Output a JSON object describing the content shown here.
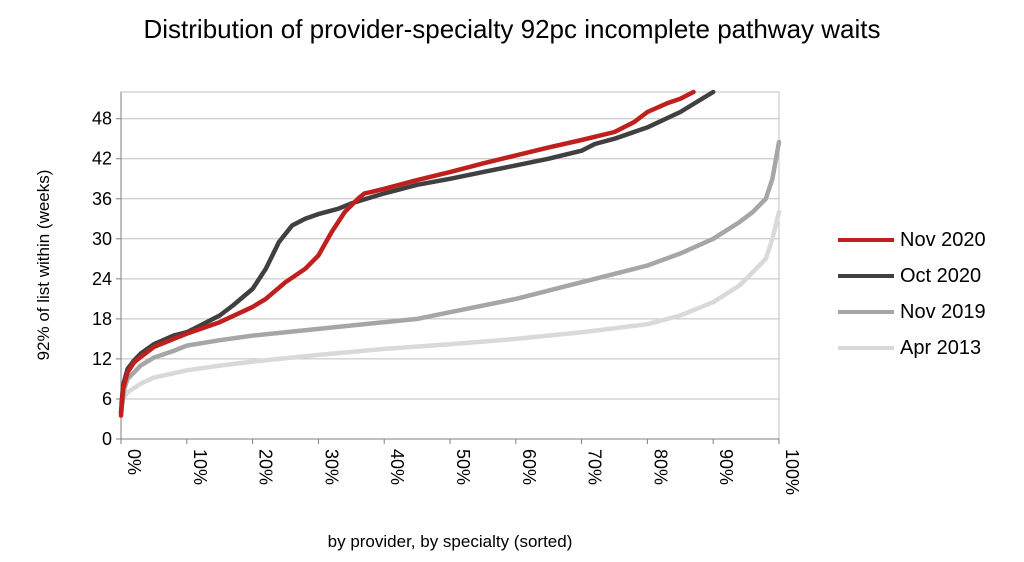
{
  "chart_data": {
    "type": "line",
    "title": "Distribution of provider-specialty 92pc incomplete pathway waits",
    "xlabel": "by provider, by specialty (sorted)",
    "ylabel": "92% of list within (weeks)",
    "ylim": [
      0,
      52
    ],
    "yticks": [
      "0",
      "6",
      "12",
      "18",
      "24",
      "30",
      "36",
      "42",
      "48"
    ],
    "xlim": [
      0,
      100
    ],
    "xticks": [
      "0%",
      "10%",
      "20%",
      "30%",
      "40%",
      "50%",
      "60%",
      "70%",
      "80%",
      "90%",
      "100%"
    ],
    "grid": "horizontal",
    "legend_position": "right",
    "series": [
      {
        "name": "Apr 2013",
        "color": "#d9d9d9",
        "x": [
          0,
          1,
          3,
          5,
          10,
          15,
          20,
          30,
          40,
          50,
          60,
          70,
          80,
          85,
          90,
          94,
          96,
          98,
          99,
          100
        ],
        "y": [
          5.5,
          7,
          8.3,
          9.2,
          10.3,
          11,
          11.6,
          12.6,
          13.5,
          14.2,
          15,
          16,
          17.2,
          18.5,
          20.5,
          23,
          25,
          27,
          30,
          34
        ]
      },
      {
        "name": "Nov 2019",
        "color": "#a6a6a6",
        "x": [
          0,
          0.5,
          1,
          3,
          5,
          8,
          10,
          15,
          20,
          30,
          40,
          45,
          50,
          60,
          70,
          80,
          85,
          90,
          94,
          96,
          98,
          99,
          100
        ],
        "y": [
          4,
          7.5,
          9,
          11,
          12.2,
          13.2,
          14,
          14.8,
          15.5,
          16.5,
          17.5,
          18,
          19,
          21,
          23.5,
          26,
          27.8,
          30,
          32.5,
          34,
          36,
          39,
          44.5
        ]
      },
      {
        "name": "Oct 2020",
        "color": "#404040",
        "x": [
          0,
          0.3,
          1,
          2,
          3,
          5,
          8,
          10,
          12,
          15,
          17,
          20,
          22,
          24,
          26,
          28,
          30,
          33,
          35,
          38,
          40,
          45,
          50,
          55,
          60,
          65,
          70,
          72,
          75,
          80,
          85,
          88,
          90
        ],
        "y": [
          4,
          8,
          10.5,
          11.8,
          12.8,
          14.2,
          15.5,
          16,
          17,
          18.5,
          20,
          22.5,
          25.5,
          29.5,
          32,
          33,
          33.7,
          34.5,
          35.3,
          36.2,
          36.8,
          38.1,
          39,
          40,
          41,
          42,
          43.2,
          44.2,
          45,
          46.7,
          49,
          50.8,
          52
        ]
      },
      {
        "name": "Nov 2020",
        "color": "#c0201d",
        "x": [
          0,
          0.3,
          1,
          2,
          3,
          5,
          8,
          10,
          15,
          20,
          22,
          25,
          28,
          30,
          32,
          34,
          36,
          37,
          38,
          40,
          45,
          50,
          55,
          60,
          65,
          70,
          75,
          78,
          80,
          83,
          85,
          87
        ],
        "y": [
          3.5,
          7.5,
          10,
          11.5,
          12.3,
          13.8,
          15,
          15.8,
          17.5,
          19.8,
          21,
          23.5,
          25.5,
          27.5,
          31,
          34,
          36,
          36.8,
          37,
          37.5,
          38.8,
          40,
          41.3,
          42.5,
          43.7,
          44.8,
          46,
          47.5,
          49,
          50.3,
          51,
          52
        ]
      }
    ]
  }
}
